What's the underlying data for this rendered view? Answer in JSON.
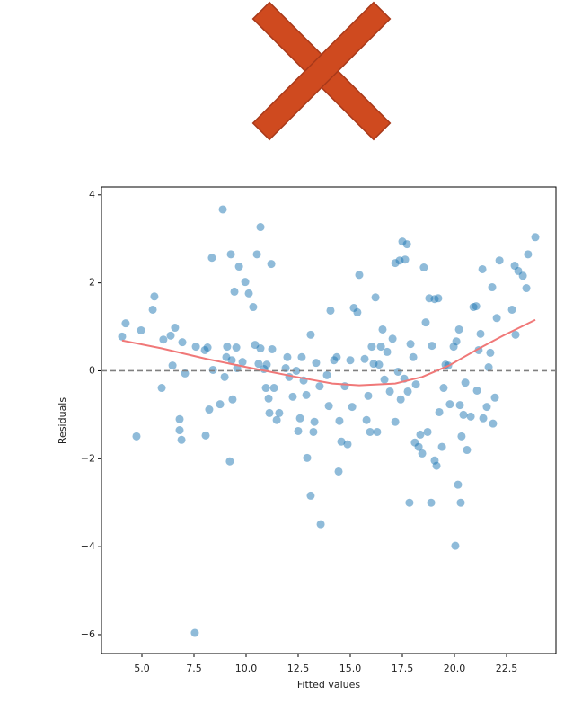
{
  "chart_data": {
    "type": "scatter",
    "x_label": "Fitted values",
    "y_label": "Residuals",
    "color": "#1f77b4",
    "opacity": 0.5,
    "xlim": [
      3.06,
      24.87
    ],
    "ylim": [
      -6.43,
      4.18
    ],
    "xticks": [
      {
        "value": 5,
        "label": "5.0"
      },
      {
        "value": 7.5,
        "label": "7.5"
      },
      {
        "value": 10,
        "label": "10.0"
      },
      {
        "value": 12.5,
        "label": "12.5"
      },
      {
        "value": 15,
        "label": "15.0"
      },
      {
        "value": 17.5,
        "label": "17.5"
      },
      {
        "value": 20,
        "label": "20.0"
      },
      {
        "value": 22.5,
        "label": "22.5"
      }
    ],
    "yticks": [
      {
        "value": -6,
        "label": "−6"
      },
      {
        "value": -4,
        "label": "−4"
      },
      {
        "value": -2,
        "label": "−2"
      },
      0,
      2,
      4
    ],
    "x": [
      4.05,
      4.22,
      4.74,
      4.96,
      5.52,
      5.6,
      5.95,
      6.03,
      6.38,
      6.47,
      6.59,
      6.81,
      6.81,
      6.9,
      6.94,
      7.07,
      7.54,
      7.59,
      8.02,
      8.06,
      8.15,
      8.23,
      8.36,
      8.41,
      8.75,
      8.88,
      8.97,
      9.05,
      9.09,
      9.22,
      9.27,
      9.31,
      9.35,
      9.44,
      9.53,
      9.57,
      9.66,
      9.83,
      9.96,
      10.13,
      10.34,
      10.43,
      10.52,
      10.6,
      10.69,
      10.69,
      10.86,
      10.95,
      10.99,
      11.08,
      11.12,
      11.21,
      11.25,
      11.34,
      11.47,
      11.59,
      11.9,
      11.98,
      12.07,
      12.24,
      12.41,
      12.5,
      12.59,
      12.67,
      12.76,
      12.89,
      12.93,
      13.1,
      13.1,
      13.23,
      13.28,
      13.36,
      13.53,
      13.58,
      13.88,
      13.97,
      14.05,
      14.22,
      14.35,
      14.44,
      14.48,
      14.57,
      14.74,
      14.87,
      15.0,
      15.09,
      15.17,
      15.34,
      15.43,
      15.69,
      15.78,
      15.86,
      15.95,
      16.03,
      16.12,
      16.21,
      16.29,
      16.38,
      16.47,
      16.55,
      16.64,
      16.77,
      16.9,
      17.03,
      17.16,
      17.16,
      17.29,
      17.37,
      17.42,
      17.5,
      17.59,
      17.63,
      17.72,
      17.76,
      17.84,
      17.89,
      18.02,
      18.1,
      18.15,
      18.28,
      18.36,
      18.45,
      18.53,
      18.62,
      18.71,
      18.79,
      18.88,
      18.92,
      19.05,
      19.05,
      19.14,
      19.22,
      19.27,
      19.4,
      19.48,
      19.57,
      19.7,
      19.78,
      19.96,
      20.04,
      20.09,
      20.17,
      20.22,
      20.26,
      20.3,
      20.34,
      20.43,
      20.52,
      20.6,
      20.78,
      20.91,
      21.04,
      21.08,
      21.16,
      21.25,
      21.34,
      21.38,
      21.55,
      21.64,
      21.72,
      21.81,
      21.85,
      21.94,
      22.03,
      22.16,
      22.76,
      22.89,
      22.93,
      23.06,
      23.28,
      23.45,
      23.53,
      23.88
    ],
    "y": [
      0.78,
      1.08,
      -1.49,
      0.92,
      1.39,
      1.69,
      -0.39,
      0.71,
      0.8,
      0.12,
      0.98,
      -1.1,
      -1.35,
      -1.57,
      0.65,
      -0.06,
      -5.96,
      0.55,
      0.47,
      -1.47,
      0.53,
      -0.88,
      2.57,
      0.02,
      -0.76,
      3.67,
      -0.14,
      0.31,
      0.55,
      -2.06,
      2.65,
      0.24,
      -0.65,
      1.8,
      0.53,
      0.06,
      2.37,
      0.2,
      2.02,
      1.76,
      1.45,
      0.59,
      2.65,
      0.16,
      3.27,
      0.51,
      0.04,
      -0.39,
      0.14,
      -0.63,
      -0.96,
      2.43,
      0.49,
      -0.39,
      -1.12,
      -0.96,
      0.06,
      0.31,
      -0.14,
      -0.59,
      0.0,
      -1.37,
      -1.08,
      0.31,
      -0.22,
      -0.55,
      -1.98,
      0.82,
      -2.84,
      -1.39,
      -1.16,
      0.18,
      -0.35,
      -3.49,
      -0.1,
      -0.8,
      1.37,
      0.24,
      0.31,
      -2.29,
      -1.14,
      -1.61,
      -0.35,
      -1.67,
      0.24,
      -0.82,
      1.43,
      1.33,
      2.18,
      0.27,
      -1.12,
      -0.57,
      -1.39,
      0.55,
      0.16,
      1.67,
      -1.39,
      0.14,
      0.55,
      0.94,
      -0.2,
      0.43,
      -0.47,
      0.73,
      -1.16,
      2.45,
      -0.02,
      2.51,
      -0.65,
      2.94,
      -0.18,
      2.53,
      2.88,
      -0.47,
      -3.0,
      0.61,
      0.31,
      -1.63,
      -0.31,
      -1.73,
      -1.45,
      -1.88,
      2.35,
      1.1,
      -1.39,
      1.65,
      -3.0,
      0.57,
      1.63,
      -2.04,
      -2.16,
      1.65,
      -0.94,
      -1.73,
      -0.39,
      0.14,
      0.12,
      -0.76,
      0.55,
      -3.98,
      0.67,
      -2.59,
      0.94,
      -0.78,
      -3.0,
      -1.49,
      -1.0,
      -0.27,
      -1.8,
      -1.04,
      1.45,
      1.47,
      -0.45,
      0.47,
      0.84,
      2.31,
      -1.08,
      -0.82,
      0.08,
      0.41,
      1.9,
      -1.2,
      -0.61,
      1.2,
      2.51,
      1.39,
      2.39,
      0.82,
      2.27,
      2.16,
      1.88,
      2.65,
      3.04
    ],
    "lowess": {
      "color": "#f07878",
      "x": [
        4.05,
        5.95,
        8.1,
        10.26,
        12.41,
        14.14,
        15.43,
        17.16,
        18.45,
        19.74,
        21.03,
        22.33,
        23.88
      ],
      "y": [
        0.69,
        0.51,
        0.27,
        0.06,
        -0.14,
        -0.29,
        -0.33,
        -0.29,
        -0.14,
        0.12,
        0.47,
        0.8,
        1.16
      ]
    },
    "hline": {
      "value": 0,
      "color": "#808080",
      "style": "dashed"
    }
  }
}
